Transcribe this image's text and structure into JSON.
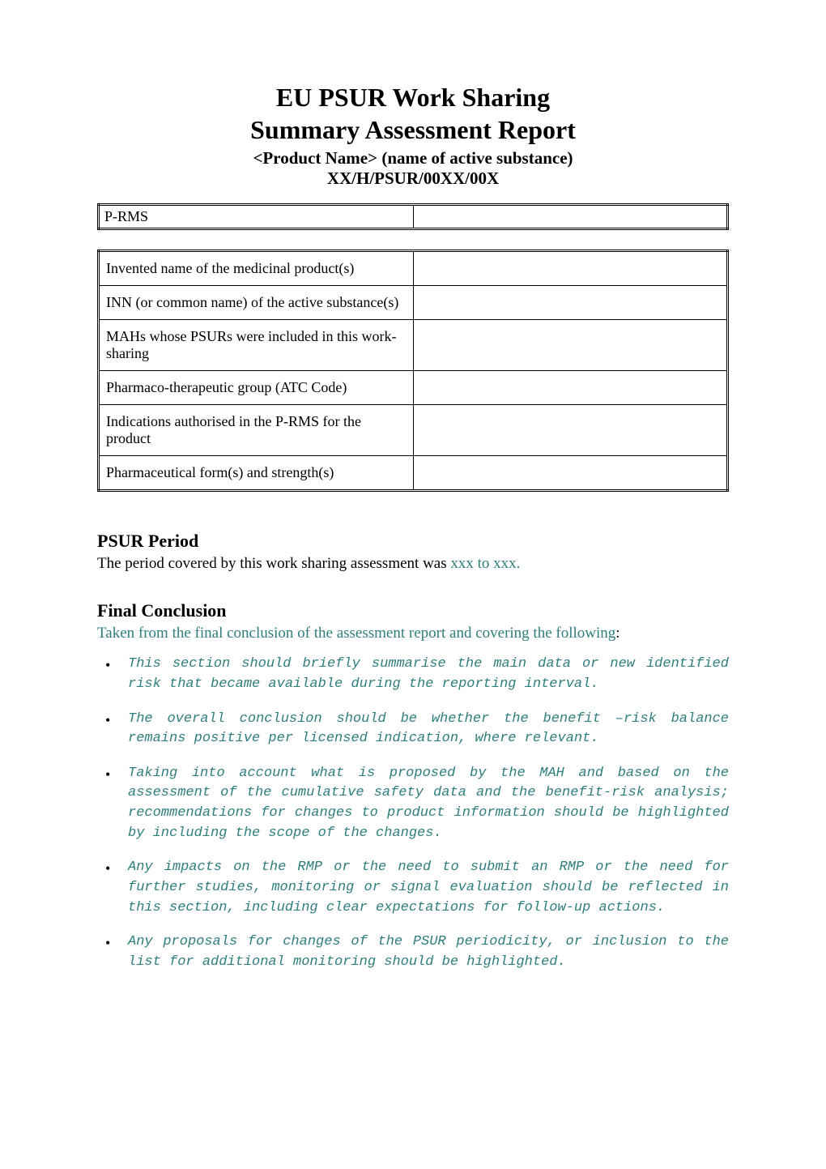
{
  "title": {
    "line1": "EU PSUR Work Sharing",
    "line2": "Summary Assessment Report",
    "sub1": "<Product Name> (name of active substance)",
    "sub2": "XX/H/PSUR/00XX/00X"
  },
  "prms": {
    "label": "P-RMS",
    "value": ""
  },
  "meta_rows": [
    {
      "label": "Invented name of the medicinal product(s)",
      "value": ""
    },
    {
      "label": "INN (or common name) of the active substance(s)",
      "value": ""
    },
    {
      "label": "MAHs whose PSURs were included in this work-sharing",
      "value": ""
    },
    {
      "label": "Pharmaco-therapeutic group (ATC Code)",
      "value": ""
    },
    {
      "label": "Indications authorised in the P-RMS for the product",
      "value": ""
    },
    {
      "label": "Pharmaceutical form(s) and strength(s)",
      "value": ""
    }
  ],
  "psur_period": {
    "heading": "PSUR Period",
    "text_prefix": "The period covered by this work sharing assessment was ",
    "text_teal": "xxx to xxx."
  },
  "final_conclusion": {
    "heading": "Final Conclusion",
    "intro_teal": "Taken from the final conclusion of the assessment report and covering the following",
    "intro_colon": ":",
    "bullets": [
      "This section should briefly summarise the main data or new identified risk that became available during the reporting interval.",
      "The overall conclusion should be whether the benefit –risk balance remains positive per licensed indication, where relevant.",
      "Taking into account what is proposed by the MAH and based on the assessment of the cumulative safety data and the benefit-risk analysis; recommendations for changes to product information should be highlighted by including the scope of the changes.",
      "Any impacts on the RMP or the need to submit an RMP or the need for further studies, monitoring or signal evaluation should be reflected in this section, including clear expectations for follow-up actions.",
      "Any proposals for changes of the PSUR periodicity, or inclusion to the list for additional monitoring should be highlighted."
    ]
  },
  "colors": {
    "text": "#000000",
    "teal": "#2f7d7d",
    "background": "#ffffff",
    "border": "#000000"
  },
  "typography": {
    "base_family": "Times New Roman",
    "mono_family": "Courier New",
    "title_size_pt": 24,
    "subtitle_size_pt": 16,
    "body_size_pt": 14,
    "bullet_size_pt": 13
  }
}
